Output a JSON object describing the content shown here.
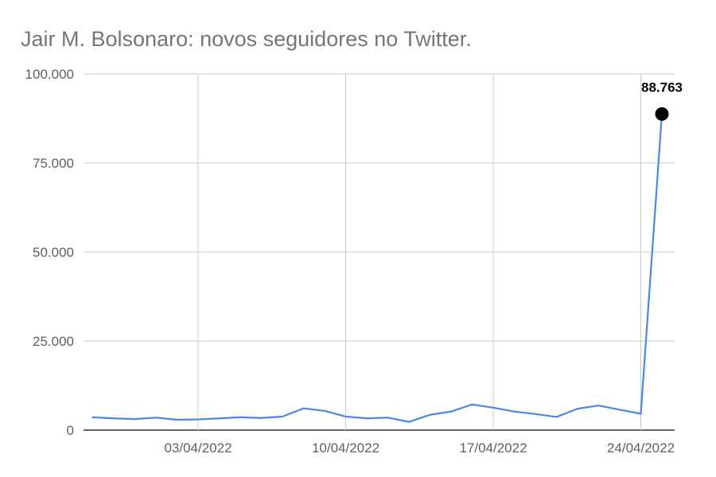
{
  "chart_data": {
    "type": "line",
    "title": "Jair M. Bolsonaro: novos seguidores no Twitter.",
    "xlabel": "",
    "ylabel": "",
    "x": [
      "2022-03-29",
      "2022-03-30",
      "2022-03-31",
      "2022-04-01",
      "2022-04-02",
      "2022-04-03",
      "2022-04-04",
      "2022-04-05",
      "2022-04-06",
      "2022-04-07",
      "2022-04-08",
      "2022-04-09",
      "2022-04-10",
      "2022-04-11",
      "2022-04-12",
      "2022-04-13",
      "2022-04-14",
      "2022-04-15",
      "2022-04-16",
      "2022-04-17",
      "2022-04-18",
      "2022-04-19",
      "2022-04-20",
      "2022-04-21",
      "2022-04-22",
      "2022-04-23",
      "2022-04-24",
      "2022-04-25"
    ],
    "series": [
      {
        "name": "",
        "color": "#4a86e8",
        "values": [
          3600,
          3300,
          3100,
          3500,
          2900,
          3000,
          3300,
          3600,
          3400,
          3800,
          6100,
          5400,
          3800,
          3300,
          3500,
          2300,
          4300,
          5200,
          7200,
          6300,
          5200,
          4500,
          3700,
          6000,
          6900,
          5700,
          4600,
          88763
        ]
      }
    ],
    "ylim": [
      0,
      100000
    ],
    "y_ticks": [
      {
        "value": 0,
        "label": "0"
      },
      {
        "value": 25000,
        "label": "25.000"
      },
      {
        "value": 50000,
        "label": "50.000"
      },
      {
        "value": 75000,
        "label": "75.000"
      },
      {
        "value": 100000,
        "label": "100.000"
      }
    ],
    "x_ticks": [
      {
        "value": "2022-04-03",
        "label": "03/04/2022"
      },
      {
        "value": "2022-04-10",
        "label": "10/04/2022"
      },
      {
        "value": "2022-04-17",
        "label": "17/04/2022"
      },
      {
        "value": "2022-04-24",
        "label": "24/04/2022"
      }
    ],
    "annotation": {
      "x": "2022-04-25",
      "value": 88763,
      "label": "88.763"
    },
    "grid": true,
    "legend": "none"
  }
}
